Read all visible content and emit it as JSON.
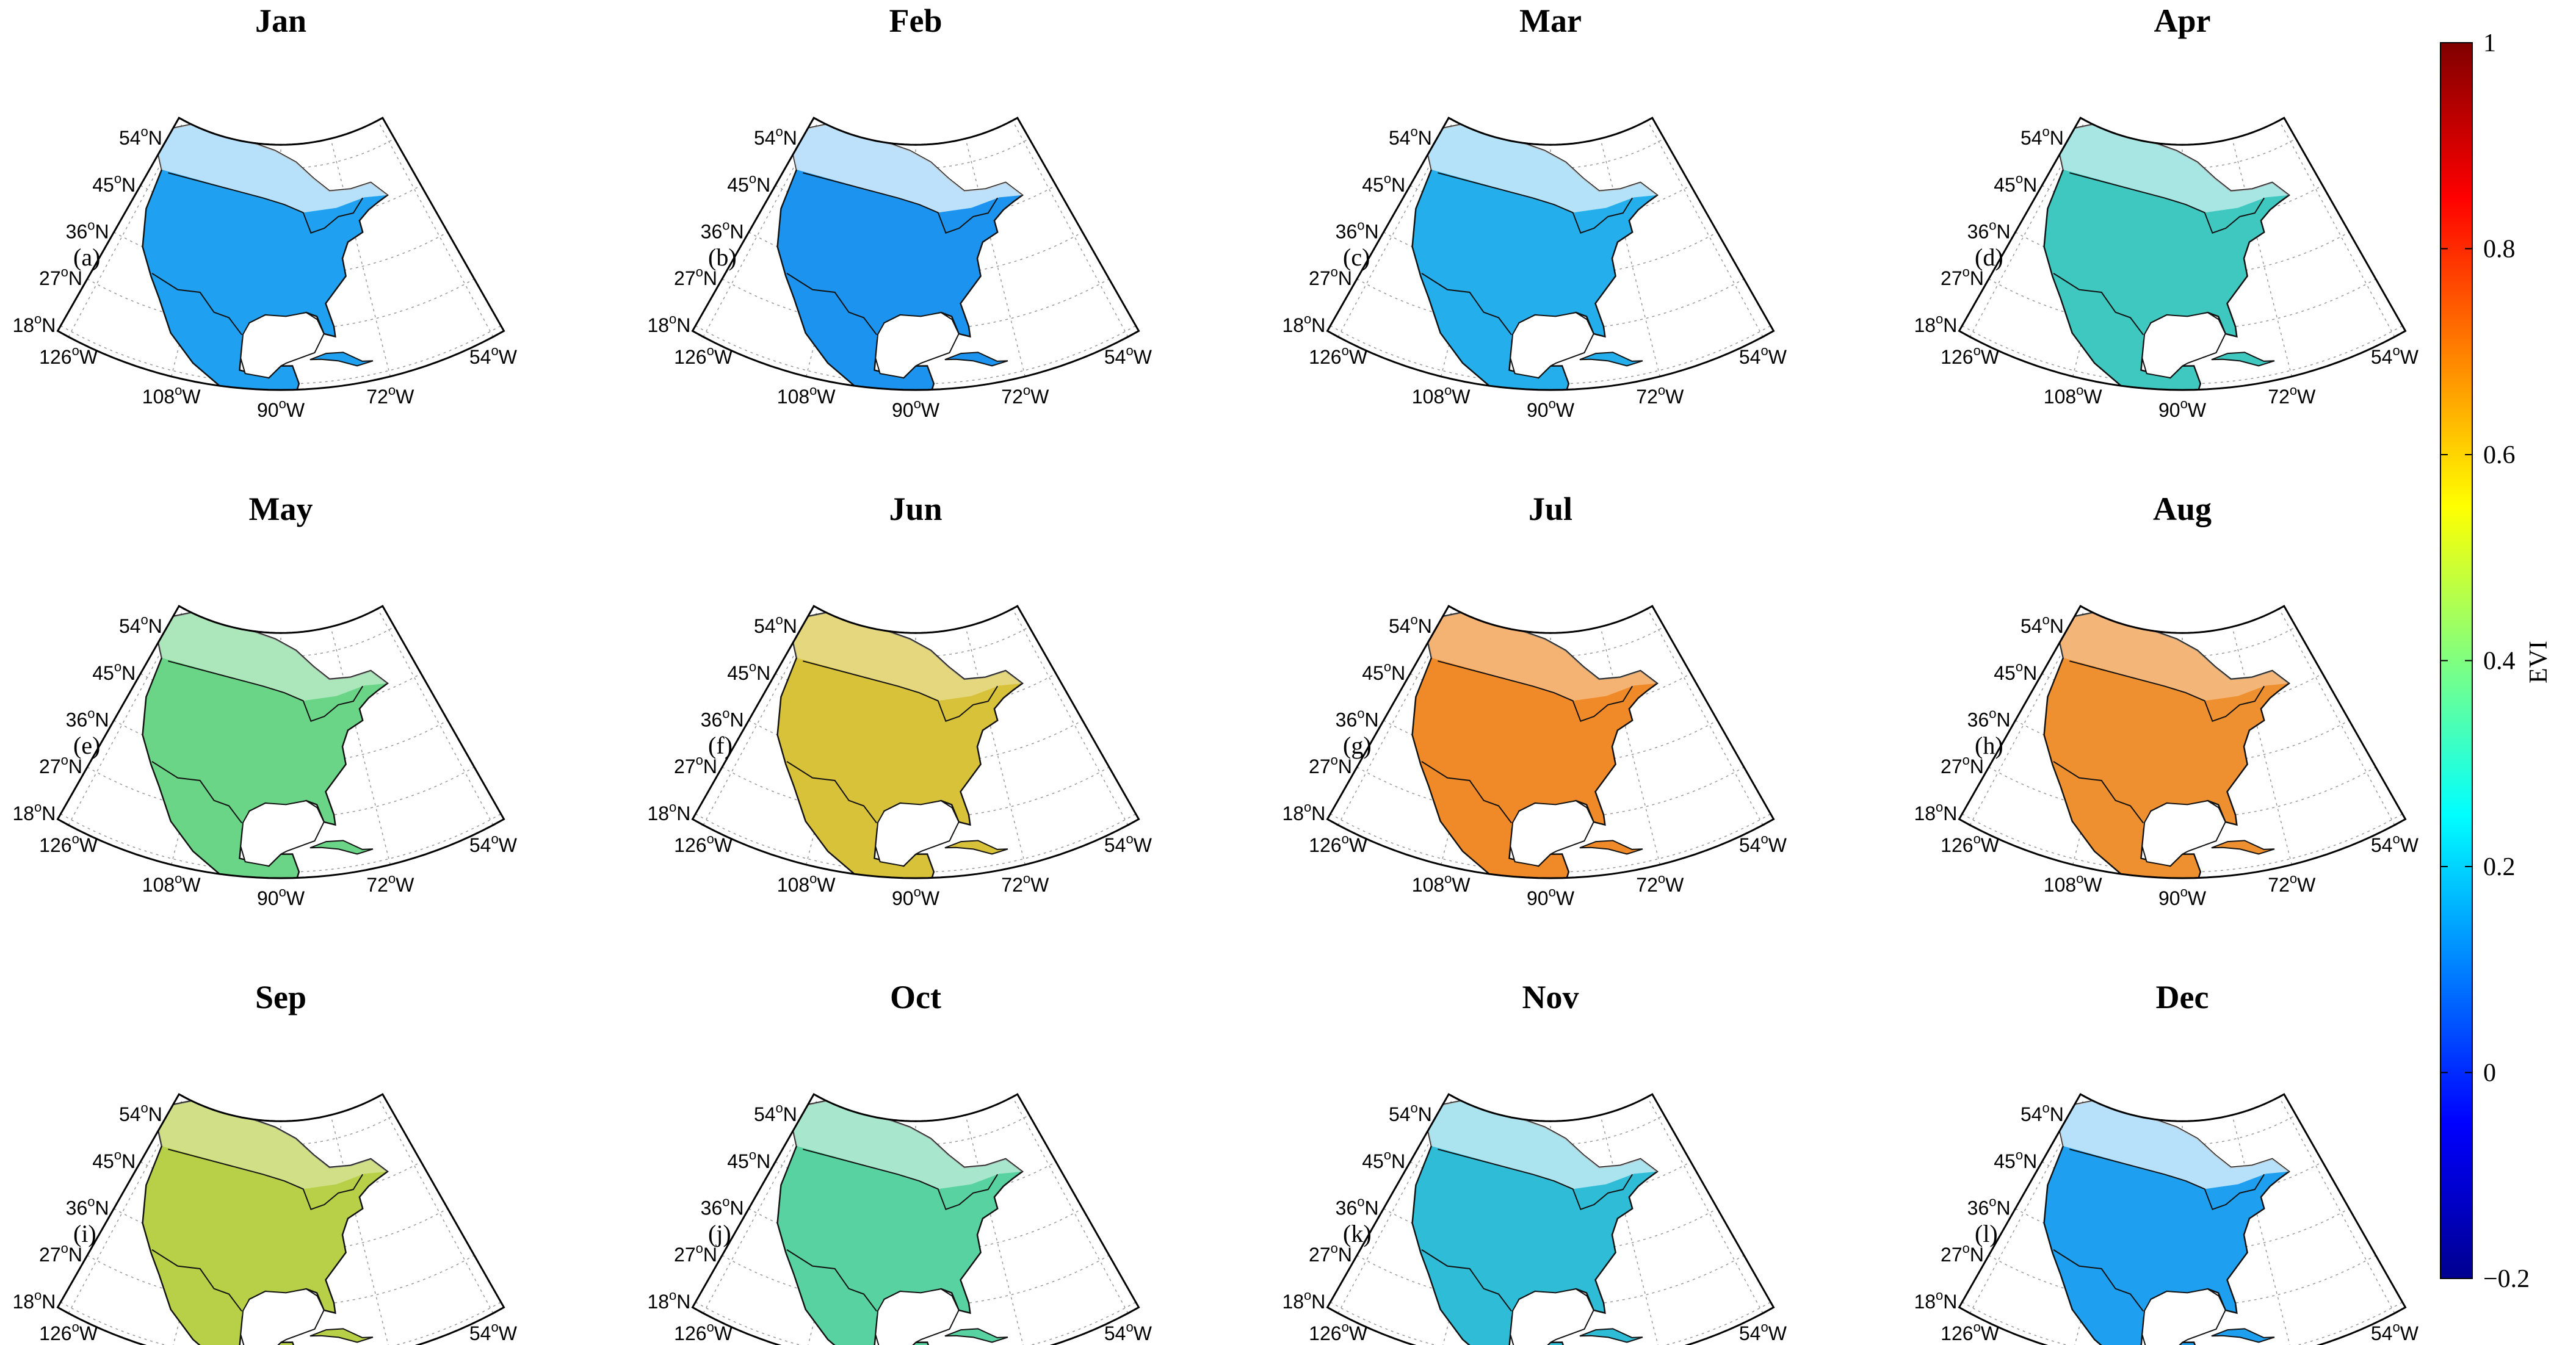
{
  "figure": {
    "colorbar": {
      "label": "EVI",
      "min": -0.2,
      "max": 1,
      "ticks": [
        "1",
        "0.8",
        "0.6",
        "0.4",
        "0.2",
        "0",
        "−0.2"
      ],
      "tick_values": [
        1,
        0.8,
        0.6,
        0.4,
        0.2,
        0,
        -0.2
      ],
      "colormap": [
        "#00008f",
        "#0000ff",
        "#0080ff",
        "#00ffff",
        "#80ff80",
        "#ffff00",
        "#ff8000",
        "#ff0000",
        "#800000"
      ]
    },
    "lat_labels": [
      "54",
      "45",
      "36",
      "27",
      "18"
    ],
    "lat_suffix": "N",
    "lon_labels": [
      "126",
      "108",
      "90",
      "72",
      "54"
    ],
    "lon_suffix": "W",
    "degree_symbol": "o",
    "panels": [
      {
        "title": "Jan",
        "label": "(a)",
        "mean_evi": 0.2,
        "fill": "#1fa0f0"
      },
      {
        "title": "Feb",
        "label": "(b)",
        "mean_evi": 0.18,
        "fill": "#1c94ef"
      },
      {
        "title": "Mar",
        "label": "(c)",
        "mean_evi": 0.22,
        "fill": "#25aeec"
      },
      {
        "title": "Apr",
        "label": "(d)",
        "mean_evi": 0.3,
        "fill": "#3fc8c0"
      },
      {
        "title": "May",
        "label": "(e)",
        "mean_evi": 0.38,
        "fill": "#6ad586"
      },
      {
        "title": "Jun",
        "label": "(f)",
        "mean_evi": 0.5,
        "fill": "#d8c23a"
      },
      {
        "title": "Jul",
        "label": "(g)",
        "mean_evi": 0.6,
        "fill": "#f08a28"
      },
      {
        "title": "Aug",
        "label": "(h)",
        "mean_evi": 0.58,
        "fill": "#ee9030"
      },
      {
        "title": "Sep",
        "label": "(i)",
        "mean_evi": 0.45,
        "fill": "#b8cf48"
      },
      {
        "title": "Oct",
        "label": "(j)",
        "mean_evi": 0.35,
        "fill": "#58d2a0"
      },
      {
        "title": "Nov",
        "label": "(k)",
        "mean_evi": 0.26,
        "fill": "#2fbcd6"
      },
      {
        "title": "Dec",
        "label": "(l)",
        "mean_evi": 0.2,
        "fill": "#1f9ff0"
      }
    ]
  }
}
